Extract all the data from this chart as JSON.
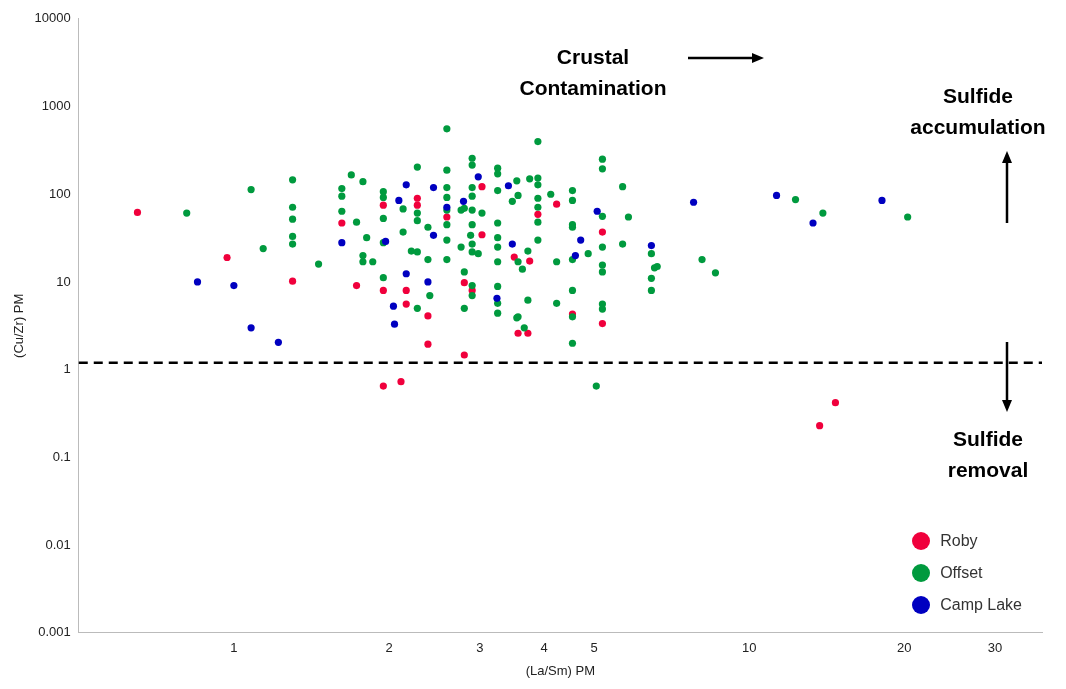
{
  "chart_data": {
    "type": "scatter",
    "xlabel": "(La/Sm) PM",
    "ylabel": "(Cu/Zr) PM",
    "log": "xy",
    "grid": false,
    "legend": "bottom right",
    "marker": "circle",
    "xlim": [
      0.5,
      37
    ],
    "xticks": [
      1,
      2,
      3,
      4,
      5,
      10,
      20,
      30
    ],
    "ylim": [
      0.001,
      10000
    ],
    "yticks": [
      0.001,
      0.01,
      0.1,
      1,
      10,
      100,
      1000,
      10000
    ],
    "ref_lines": [
      {
        "axis": "y",
        "value": 1.2,
        "color": "#000000",
        "line_style": "dashed"
      }
    ],
    "annotations": [
      "Crustal Contamination",
      "Sulfide accumulation",
      "Sulfide removal"
    ],
    "series": [
      {
        "name": "Roby",
        "color": "#f0003c",
        "x": [
          0.65,
          0.97,
          1.3,
          1.62,
          1.73,
          1.95,
          1.95,
          2.16,
          2.16,
          2.27,
          2.27,
          2.38,
          2.38,
          2.59,
          2.8,
          2.9,
          2.8,
          3.03,
          3.03,
          3.5,
          3.56,
          3.72,
          3.75,
          3.89,
          4.23,
          4.54,
          5.19,
          5.19,
          1.95,
          2.11,
          13.7,
          14.7
        ],
        "values": [
          62,
          19,
          10.2,
          47,
          9.1,
          75,
          8,
          8,
          5.6,
          90,
          75,
          4.1,
          1.95,
          55,
          9.8,
          8,
          1.47,
          122,
          34.5,
          19.2,
          2.6,
          2.6,
          17.3,
          59,
          77,
          4.3,
          37,
          3.35,
          0.65,
          0.73,
          0.23,
          0.42
        ]
      },
      {
        "name": "Offset",
        "color": "#009a3e",
        "x": [
          0.81,
          1.08,
          1.14,
          1.3,
          1.3,
          1.3,
          1.3,
          1.3,
          1.46,
          1.62,
          1.62,
          1.62,
          1.69,
          1.78,
          1.73,
          1.81,
          1.78,
          1.78,
          1.86,
          2.59,
          2.59,
          2.27,
          1.95,
          1.95,
          2.13,
          1.95,
          2.13,
          1.95,
          1.95,
          2.21,
          2.27,
          2.27,
          2.27,
          2.38,
          2.38,
          2.4,
          2.27,
          2.59,
          2.59,
          2.59,
          2.59,
          2.59,
          2.59,
          2.76,
          2.8,
          2.76,
          2.8,
          2.8,
          2.9,
          2.9,
          2.9,
          2.9,
          2.9,
          2.9,
          2.88,
          2.9,
          2.9,
          2.98,
          2.9,
          2.9,
          3.03,
          3.25,
          3.25,
          3.25,
          3.25,
          3.25,
          3.25,
          3.25,
          3.25,
          3.25,
          3.25,
          3.54,
          3.47,
          3.54,
          3.89,
          3.75,
          3.89,
          3.89,
          3.56,
          3.89,
          3.89,
          4.12,
          3.89,
          3.89,
          4.54,
          4.54,
          4.54,
          4.54,
          4.87,
          4.54,
          4.23,
          3.56,
          3.72,
          3.63,
          4.54,
          4.23,
          3.72,
          3.56,
          3.66,
          4.54,
          4.54,
          5.19,
          5.19,
          5.19,
          5.19,
          5.19,
          5.19,
          5.19,
          5.19,
          5.68,
          5.83,
          5.68,
          6.46,
          6.55,
          6.46,
          6.46,
          6.63,
          8.1,
          8.6,
          12.3,
          13.9,
          20.3,
          5.05
        ],
        "values": [
          61,
          113,
          24,
          146,
          71,
          52,
          33,
          27,
          16,
          116,
          95,
          64,
          166,
          139,
          48,
          32,
          20,
          17,
          17,
          557,
          188,
          204,
          107,
          92,
          68,
          53,
          37,
          28,
          11.2,
          22.5,
          22,
          61,
          50,
          42,
          18,
          7,
          5,
          119,
          92,
          66,
          45,
          30,
          18,
          66,
          69,
          25,
          13,
          5,
          257,
          215,
          119,
          95,
          66,
          45,
          34,
          27,
          22,
          21,
          9.1,
          7,
          61,
          198,
          171,
          110,
          47,
          32,
          25,
          17,
          8.9,
          5.7,
          4.4,
          142,
          83,
          3.9,
          398,
          150,
          153,
          128,
          97,
          90,
          71,
          100,
          48,
          30,
          110,
          85,
          45,
          42,
          21,
          18,
          17,
          17,
          22.5,
          14,
          8,
          5.7,
          6.2,
          4,
          3,
          4,
          2,
          251,
          195,
          56,
          25,
          15.6,
          13,
          5.6,
          4.9,
          122,
          55,
          27,
          21,
          14.5,
          11,
          8,
          15,
          18,
          12.7,
          87,
          61,
          55,
          0.65
        ]
      },
      {
        "name": "Camp Lake",
        "color": "#0000c0",
        "x": [
          0.85,
          1,
          1.08,
          1.22,
          1.62,
          2.16,
          2.44,
          2.09,
          2.79,
          2.98,
          2.59,
          1.97,
          2.44,
          2.16,
          2.38,
          2.04,
          2.05,
          3.41,
          3.47,
          3.24,
          5.07,
          4.71,
          4.6,
          6.46,
          7.8,
          11.3,
          13.3,
          18.1
        ],
        "values": [
          10,
          9.1,
          3,
          2.05,
          28,
          128,
          119,
          85,
          83,
          158,
          71,
          29,
          34,
          12.4,
          10,
          5.3,
          3.3,
          125,
          27,
          6.5,
          64,
          30,
          20,
          26,
          81,
          97,
          47,
          85
        ]
      }
    ]
  }
}
